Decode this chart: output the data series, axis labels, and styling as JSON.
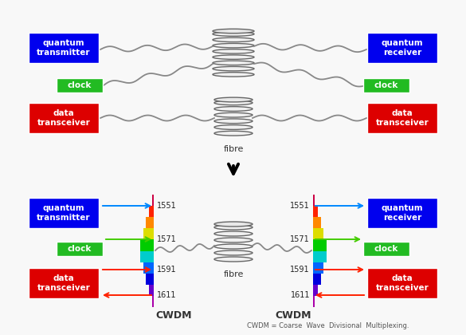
{
  "bg_color": "#f8f8f8",
  "top": {
    "qt": {
      "label": "quantum\ntransmitter",
      "color": "#0000ee",
      "tc": "#ffffff"
    },
    "qr": {
      "label": "quantum\nreceiver",
      "color": "#0000ee",
      "tc": "#ffffff"
    },
    "clk_l": {
      "label": "clock",
      "color": "#22bb22",
      "tc": "#ffffff"
    },
    "clk_r": {
      "label": "clock",
      "color": "#22bb22",
      "tc": "#ffffff"
    },
    "dat_l": {
      "label": "data\ntransceiver",
      "color": "#dd0000",
      "tc": "#ffffff"
    },
    "dat_r": {
      "label": "data\ntransceiver",
      "color": "#dd0000",
      "tc": "#ffffff"
    },
    "fibre": "fibre"
  },
  "bot": {
    "qt": {
      "label": "quantum\ntransmitter",
      "color": "#0000ee",
      "tc": "#ffffff"
    },
    "qr": {
      "label": "quantum\nreceiver",
      "color": "#0000ee",
      "tc": "#ffffff"
    },
    "clk_l": {
      "label": "clock",
      "color": "#22bb22",
      "tc": "#ffffff"
    },
    "clk_r": {
      "label": "clock",
      "color": "#22bb22",
      "tc": "#ffffff"
    },
    "dat_l": {
      "label": "data\ntransceiver",
      "color": "#dd0000",
      "tc": "#ffffff"
    },
    "dat_r": {
      "label": "data\ntransceiver",
      "color": "#dd0000",
      "tc": "#ffffff"
    },
    "fibre": "fibre",
    "cwdm": "CWDM",
    "wl": [
      "1551",
      "1571",
      "1591",
      "1611"
    ],
    "acols": [
      "#0088ff",
      "#44cc00",
      "#ff2200",
      "#ff2200"
    ]
  },
  "footnote": "CWDM = Coarse  Wave  Divisional  Multiplexing."
}
